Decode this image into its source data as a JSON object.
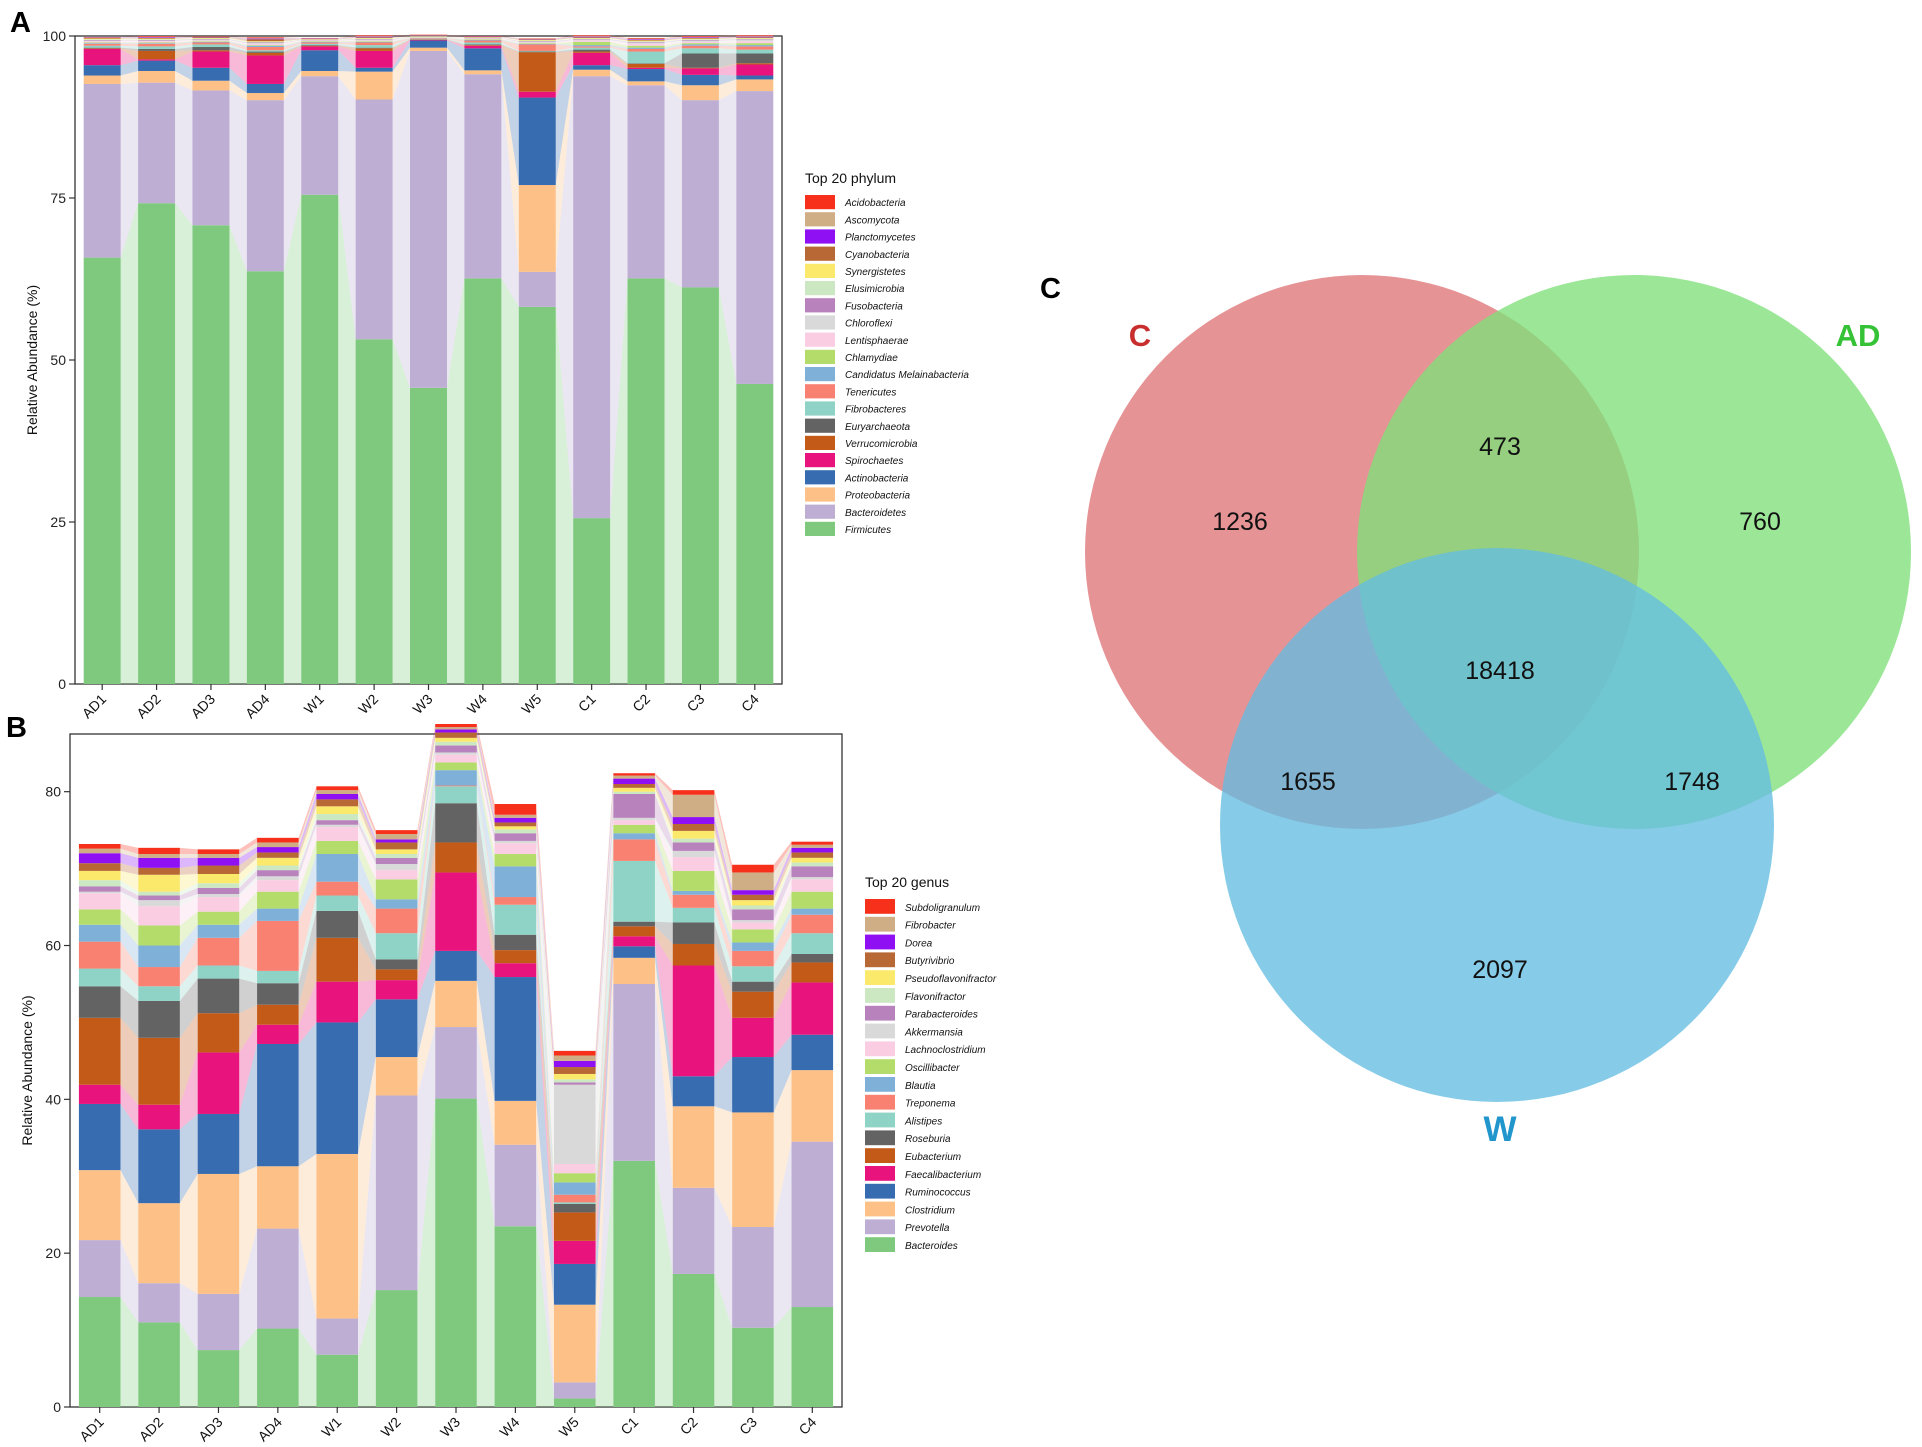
{
  "panels": {
    "a": {
      "label": "A"
    },
    "b": {
      "label": "B"
    },
    "c": {
      "label": "C"
    }
  },
  "colors": {
    "Acidobacteria": "#f7301c",
    "Ascomycota": "#cfae86",
    "Planctomycetes": "#8f10f2",
    "Cyanobacteria": "#b86834",
    "Synergistetes": "#fbe96b",
    "Elusimicrobia": "#cbe8c3",
    "Fusobacteria": "#b882bc",
    "Chloroflexi": "#d9d9d9",
    "Lentisphaerae": "#fbcde3",
    "Chlamydiae": "#b3dc6a",
    "Candidatus Melainabacteria": "#7fb0d8",
    "Tenericutes": "#f88172",
    "Fibrobacteres": "#8fd3c6",
    "Euryarchaeota": "#636363",
    "Verrucomicrobia": "#c45a18",
    "Spirochaetes": "#e8137c",
    "Actinobacteria": "#386cb0",
    "Proteobacteria": "#fdc086",
    "Bacteroidetes": "#beaed4",
    "Firmicutes": "#7fc97f",
    "Subdoligranulum": "#f7301c",
    "Fibrobacter": "#cfae86",
    "Dorea": "#8f10f2",
    "Butyrivibrio": "#b86834",
    "Pseudoflavonifractor": "#fbe96b",
    "Flavonifractor": "#cbe8c3",
    "Parabacteroides": "#b882bc",
    "Akkermansia": "#d9d9d9",
    "Lachnoclostridium": "#fbcde3",
    "Oscillibacter": "#b3dc6a",
    "Blautia": "#7fb0d8",
    "Treponema": "#f88172",
    "Alistipes": "#8fd3c6",
    "Roseburia": "#636363",
    "Eubacterium": "#c45a18",
    "Faecalibacterium": "#e8137c",
    "Ruminococcus": "#386cb0",
    "Clostridium": "#fdc086",
    "Prevotella": "#beaed4",
    "Bacteroides": "#7fc97f",
    "venn_c": "#e07b7e",
    "venn_ad": "#7fe07a",
    "venn_w": "#64bde2",
    "venn_c_text": "#c92e2e",
    "venn_ad_text": "#35c236",
    "venn_w_text": "#2196cc"
  },
  "chart_data": [
    {
      "panel": "A",
      "type": "bar",
      "stacked": true,
      "ylabel": "Relative Abundance (%)",
      "xlabel": "",
      "ylim": [
        0,
        100
      ],
      "yticks": [
        0,
        25,
        50,
        75,
        100
      ],
      "legend_title": "Top 20 phylum",
      "legend_position": "right",
      "categories": [
        "AD1",
        "AD2",
        "AD3",
        "AD4",
        "W1",
        "W2",
        "W3",
        "W4",
        "W5",
        "C1",
        "C2",
        "C3",
        "C4"
      ],
      "series": [
        {
          "name": "Firmicutes",
          "values": [
            65.8,
            74.2,
            70.8,
            63.7,
            75.5,
            53.2,
            45.7,
            62.6,
            58.2,
            25.6,
            62.6,
            61.2,
            46.3
          ]
        },
        {
          "name": "Bacteroidetes",
          "values": [
            26.8,
            18.6,
            20.8,
            26.4,
            18.3,
            37.0,
            52.0,
            31.5,
            5.4,
            68.2,
            29.8,
            28.9,
            45.2
          ]
        },
        {
          "name": "Proteobacteria",
          "values": [
            1.3,
            1.8,
            1.5,
            1.1,
            0.8,
            4.3,
            0.5,
            0.6,
            13.4,
            1.0,
            0.6,
            2.3,
            1.8
          ]
        },
        {
          "name": "Actinobacteria",
          "values": [
            1.6,
            1.6,
            2.0,
            1.4,
            3.2,
            0.6,
            1.1,
            3.4,
            13.5,
            0.7,
            1.9,
            1.6,
            0.6
          ]
        },
        {
          "name": "Spirochaetes",
          "values": [
            2.5,
            0.2,
            2.5,
            4.4,
            0.6,
            2.6,
            0.1,
            0.4,
            0.9,
            1.9,
            0.2,
            1.0,
            1.7
          ]
        },
        {
          "name": "Verrucomicrobia",
          "values": [
            0.1,
            1.3,
            0.2,
            0.4,
            0.1,
            0.4,
            0.05,
            0.1,
            6.1,
            0.2,
            0.6,
            0.1,
            0.2
          ]
        },
        {
          "name": "Euryarchaeota",
          "values": [
            0.1,
            0.3,
            0.5,
            0.2,
            0.1,
            0.1,
            0.05,
            0.1,
            0.1,
            0.3,
            0.1,
            2.2,
            1.5
          ]
        },
        {
          "name": "Fibrobacteres",
          "values": [
            0.3,
            0.4,
            0.4,
            0.2,
            0.2,
            0.4,
            0.05,
            0.3,
            0.1,
            0.3,
            1.8,
            0.8,
            0.6
          ]
        },
        {
          "name": "Tenericutes",
          "values": [
            0.3,
            0.4,
            0.3,
            0.5,
            0.2,
            0.4,
            0.1,
            0.3,
            1.0,
            0.2,
            0.4,
            0.4,
            0.5
          ]
        },
        {
          "name": "Candidatus Melainabacteria",
          "values": [
            0.1,
            0.1,
            0.1,
            0.2,
            0.1,
            0.1,
            0.05,
            0.1,
            0.1,
            0.2,
            0.2,
            0.2,
            0.2
          ]
        },
        {
          "name": "Chlamydiae",
          "values": [
            0.1,
            0.1,
            0.1,
            0.1,
            0.1,
            0.1,
            0.05,
            0.1,
            0.1,
            0.5,
            0.3,
            0.2,
            0.3
          ]
        },
        {
          "name": "Lentisphaerae",
          "values": [
            0.2,
            0.2,
            0.1,
            0.2,
            0.1,
            0.1,
            0.05,
            0.1,
            0.1,
            0.2,
            0.3,
            0.2,
            0.3
          ]
        },
        {
          "name": "Chloroflexi",
          "values": [
            0.1,
            0.1,
            0.1,
            0.1,
            0.05,
            0.1,
            0.05,
            0.05,
            0.1,
            0.1,
            0.2,
            0.2,
            0.2
          ]
        },
        {
          "name": "Fusobacteria",
          "values": [
            0.1,
            0.1,
            0.1,
            0.1,
            0.05,
            0.1,
            0.05,
            0.05,
            0.1,
            0.1,
            0.1,
            0.1,
            0.1
          ]
        },
        {
          "name": "Elusimicrobia",
          "values": [
            0.1,
            0.1,
            0.1,
            0.1,
            0.05,
            0.1,
            0.05,
            0.05,
            0.1,
            0.1,
            0.1,
            0.1,
            0.1
          ]
        },
        {
          "name": "Synergistetes",
          "values": [
            0.1,
            0.1,
            0.1,
            0.1,
            0.05,
            0.1,
            0.05,
            0.05,
            0.1,
            0.1,
            0.1,
            0.1,
            0.1
          ]
        },
        {
          "name": "Cyanobacteria",
          "values": [
            0.1,
            0.1,
            0.1,
            0.3,
            0.05,
            0.1,
            0.05,
            0.05,
            0.1,
            0.1,
            0.1,
            0.1,
            0.1
          ]
        },
        {
          "name": "Planctomycetes",
          "values": [
            0.05,
            0.1,
            0.05,
            0.1,
            0.05,
            0.1,
            0.05,
            0.05,
            0.05,
            0.1,
            0.1,
            0.1,
            0.1
          ]
        },
        {
          "name": "Ascomycota",
          "values": [
            0.05,
            0.1,
            0.05,
            0.1,
            0.05,
            0.1,
            0.05,
            0.05,
            0.05,
            0.1,
            0.1,
            0.1,
            0.1
          ]
        },
        {
          "name": "Acidobacteria",
          "values": [
            0.05,
            0.1,
            0.05,
            0.1,
            0.05,
            0.1,
            0.05,
            0.05,
            0.05,
            0.1,
            0.1,
            0.1,
            0.1
          ]
        }
      ]
    },
    {
      "panel": "B",
      "type": "bar",
      "stacked": true,
      "ylabel": "Relative Abundance (%)",
      "xlabel": "",
      "ylim": [
        0,
        87.5
      ],
      "yticks": [
        0,
        20,
        40,
        60,
        80
      ],
      "legend_title": "Top 20 genus",
      "legend_position": "right",
      "categories": [
        "AD1",
        "AD2",
        "AD3",
        "AD4",
        "W1",
        "W2",
        "W3",
        "W4",
        "W5",
        "C1",
        "C2",
        "C3",
        "C4"
      ],
      "series": [
        {
          "name": "Bacteroides",
          "values": [
            14.3,
            11.0,
            7.4,
            10.2,
            6.8,
            15.2,
            40.1,
            23.5,
            1.1,
            32.0,
            17.3,
            10.3,
            13.0
          ]
        },
        {
          "name": "Prevotella",
          "values": [
            7.4,
            5.1,
            7.3,
            13.0,
            4.7,
            25.3,
            9.3,
            10.6,
            2.1,
            23.0,
            11.2,
            13.1,
            21.5
          ]
        },
        {
          "name": "Clostridium",
          "values": [
            9.1,
            10.4,
            15.6,
            8.1,
            21.4,
            5.0,
            6.0,
            5.7,
            10.1,
            3.4,
            10.6,
            14.9,
            9.3
          ]
        },
        {
          "name": "Ruminococcus",
          "values": [
            8.6,
            9.6,
            7.8,
            15.9,
            17.1,
            7.5,
            3.9,
            16.1,
            5.3,
            1.5,
            3.9,
            7.2,
            4.6
          ]
        },
        {
          "name": "Faecalibacterium",
          "values": [
            2.5,
            3.2,
            8.0,
            2.5,
            5.3,
            2.5,
            10.2,
            1.8,
            3.0,
            1.3,
            14.4,
            5.1,
            6.8
          ]
        },
        {
          "name": "Eubacterium",
          "values": [
            8.7,
            8.7,
            5.1,
            2.6,
            5.7,
            1.4,
            3.9,
            1.7,
            3.7,
            1.3,
            2.8,
            3.4,
            2.6
          ]
        },
        {
          "name": "Roseburia",
          "values": [
            4.1,
            4.8,
            4.5,
            2.8,
            3.5,
            1.3,
            5.1,
            2.0,
            1.1,
            0.6,
            2.8,
            1.3,
            1.1
          ]
        },
        {
          "name": "Alistipes",
          "values": [
            2.3,
            1.9,
            1.7,
            1.6,
            2.0,
            3.4,
            2.2,
            3.9,
            0.2,
            7.9,
            1.9,
            2.0,
            2.7
          ]
        },
        {
          "name": "Treponema",
          "values": [
            3.5,
            2.5,
            3.6,
            6.5,
            1.8,
            3.2,
            0.1,
            1.0,
            1.0,
            2.8,
            1.7,
            2.0,
            2.4
          ]
        },
        {
          "name": "Blautia",
          "values": [
            2.2,
            2.8,
            1.7,
            1.6,
            3.6,
            1.2,
            2.0,
            4.0,
            1.6,
            0.8,
            0.5,
            1.1,
            0.8
          ]
        },
        {
          "name": "Oscillibacter",
          "values": [
            2.0,
            2.6,
            1.7,
            2.2,
            1.7,
            2.6,
            1.0,
            1.6,
            1.2,
            1.1,
            2.6,
            1.7,
            2.2
          ]
        },
        {
          "name": "Lachnoclostridium",
          "values": [
            2.1,
            2.5,
            1.9,
            1.5,
            1.8,
            1.2,
            1.0,
            1.4,
            1.2,
            0.6,
            1.8,
            0.9,
            1.6
          ]
        },
        {
          "name": "Akkermansia",
          "values": [
            0.2,
            0.8,
            0.4,
            0.5,
            0.3,
            0.8,
            0.3,
            0.3,
            10.3,
            0.3,
            0.8,
            0.3,
            0.3
          ]
        },
        {
          "name": "Parabacteroides",
          "values": [
            0.7,
            0.6,
            0.8,
            0.8,
            0.6,
            0.8,
            0.9,
            1.0,
            0.3,
            3.1,
            1.1,
            1.4,
            1.4
          ]
        },
        {
          "name": "Flavonifractor",
          "values": [
            0.8,
            0.5,
            0.6,
            0.6,
            0.8,
            0.5,
            0.5,
            0.5,
            0.4,
            0.3,
            0.5,
            0.5,
            0.5
          ]
        },
        {
          "name": "Pseudoflavonifractor",
          "values": [
            1.2,
            2.2,
            1.2,
            1.0,
            1.0,
            0.6,
            0.5,
            0.4,
            0.7,
            0.5,
            1.0,
            0.7,
            0.6
          ]
        },
        {
          "name": "Butyrivibrio",
          "values": [
            1.0,
            0.9,
            1.1,
            0.7,
            0.9,
            0.9,
            0.7,
            0.5,
            0.9,
            0.5,
            0.9,
            0.7,
            0.7
          ]
        },
        {
          "name": "Dorea",
          "values": [
            1.3,
            1.3,
            1.0,
            0.7,
            0.7,
            0.4,
            0.4,
            0.6,
            0.8,
            0.7,
            0.9,
            0.6,
            0.6
          ]
        },
        {
          "name": "Fibrobacter",
          "values": [
            0.6,
            0.5,
            0.5,
            0.6,
            0.5,
            0.7,
            0.3,
            0.4,
            0.7,
            0.4,
            2.9,
            2.3,
            0.4
          ]
        },
        {
          "name": "Subdoligranulum",
          "values": [
            0.6,
            0.8,
            0.6,
            0.6,
            0.5,
            0.5,
            0.4,
            1.4,
            0.6,
            0.3,
            0.6,
            1.0,
            0.4
          ]
        }
      ]
    },
    {
      "panel": "C",
      "type": "venn",
      "sets": [
        "C",
        "AD",
        "W"
      ],
      "regions": {
        "c_only": "1236",
        "ad_only": "760",
        "w_only": "2097",
        "c_ad": "473",
        "c_w": "1655",
        "ad_w": "1748",
        "c_ad_w": "18418"
      }
    }
  ]
}
